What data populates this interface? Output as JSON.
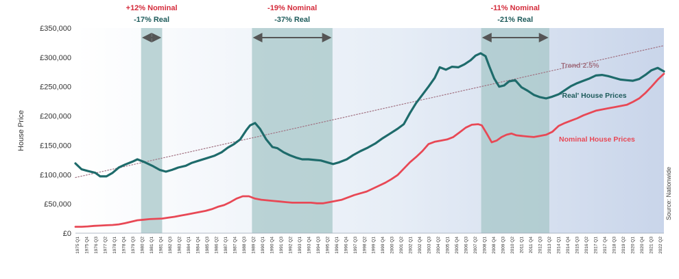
{
  "chart_data": {
    "type": "line",
    "ylabel": "House Price",
    "ylim": [
      0,
      350000
    ],
    "y_ticks": [
      "£0",
      "£50,000",
      "£100,000",
      "£150,000",
      "£200,000",
      "£250,000",
      "£300,000",
      "£350,000"
    ],
    "y_tick_values": [
      0,
      50000,
      100000,
      150000,
      200000,
      250000,
      300000,
      350000
    ],
    "x_range": [
      1975.0,
      2022.5
    ],
    "x_ticks": [
      "1975 Q1",
      "1975 Q4",
      "1976 Q3",
      "1977 Q2",
      "1978 Q1",
      "1978 Q4",
      "1979 Q3",
      "1980 Q2",
      "1981 Q1",
      "1981 Q4",
      "1982 Q3",
      "1983 Q2",
      "1984 Q1",
      "1984 Q4",
      "1985 Q3",
      "1986 Q2",
      "1987 Q1",
      "1987 Q4",
      "1988 Q3",
      "1989 Q2",
      "1990 Q1",
      "1990 Q4",
      "1991 Q3",
      "1992 Q2",
      "1993 Q1",
      "1993 Q4",
      "1994 Q3",
      "1995 Q2",
      "1996 Q1",
      "1996 Q4",
      "1997 Q3",
      "1998 Q2",
      "1999 Q1",
      "1999 Q4",
      "2000 Q3",
      "2001 Q2",
      "2002 Q1",
      "2002 Q4",
      "2003 Q3",
      "2004 Q2",
      "2005 Q1",
      "2005 Q4",
      "2006 Q3",
      "2007 Q2",
      "2008 Q1",
      "2008 Q4",
      "2009 Q3",
      "2010 Q2",
      "2011 Q1",
      "2011 Q4",
      "2012 Q3",
      "2013 Q2",
      "2014 Q1",
      "2014 Q4",
      "2015 Q3",
      "2016 Q2",
      "2017 Q1",
      "2017 Q4",
      "2018 Q3",
      "2019 Q2",
      "2020 Q1",
      "2020 Q4",
      "2021 Q3",
      "2022 Q2"
    ],
    "grid": false,
    "background": "gradient white to light blue",
    "series": [
      {
        "name": "'Real' House Prices",
        "color": "#1e6b6b",
        "x": [
          1975.0,
          1975.5,
          1976.0,
          1976.6,
          1977.0,
          1977.5,
          1978.0,
          1978.5,
          1979.0,
          1979.6,
          1980.0,
          1980.6,
          1981.2,
          1981.8,
          1982.3,
          1982.8,
          1983.3,
          1983.9,
          1984.4,
          1985.0,
          1985.6,
          1986.2,
          1986.8,
          1987.3,
          1987.8,
          1988.3,
          1988.8,
          1989.1,
          1989.5,
          1989.9,
          1990.4,
          1990.9,
          1991.3,
          1991.8,
          1992.3,
          1992.8,
          1993.3,
          1993.8,
          1994.3,
          1994.8,
          1995.3,
          1995.8,
          1996.3,
          1996.9,
          1997.4,
          1998.0,
          1998.6,
          1999.2,
          1999.8,
          2000.4,
          2001.0,
          2001.5,
          2002.0,
          2002.5,
          2003.0,
          2003.5,
          2004.0,
          2004.4,
          2004.9,
          2005.4,
          2005.9,
          2006.4,
          2006.9,
          2007.3,
          2007.7,
          2008.1,
          2008.4,
          2008.8,
          2009.2,
          2009.6,
          2010.0,
          2010.5,
          2011.0,
          2011.5,
          2012.0,
          2012.5,
          2013.0,
          2013.5,
          2014.0,
          2014.5,
          2015.0,
          2015.5,
          2016.0,
          2016.5,
          2017.0,
          2017.5,
          2018.0,
          2018.5,
          2019.0,
          2019.5,
          2020.0,
          2020.5,
          2021.0,
          2021.5,
          2022.0,
          2022.5
        ],
        "y": [
          119000,
          109000,
          106000,
          103000,
          97000,
          97000,
          103000,
          112000,
          117000,
          122000,
          126000,
          121000,
          115000,
          108000,
          105000,
          108000,
          112000,
          115000,
          120000,
          124000,
          128000,
          132000,
          138000,
          146000,
          152000,
          160000,
          176000,
          184000,
          188000,
          178000,
          160000,
          147000,
          145000,
          138000,
          133000,
          129000,
          126000,
          126000,
          125000,
          124000,
          121000,
          118000,
          121000,
          126000,
          133000,
          140000,
          146000,
          153000,
          162000,
          170000,
          178000,
          186000,
          205000,
          222000,
          236000,
          250000,
          265000,
          283000,
          279000,
          284000,
          283000,
          288000,
          295000,
          303000,
          307000,
          302000,
          285000,
          264000,
          250000,
          252000,
          259000,
          261000,
          249000,
          243000,
          236000,
          232000,
          230000,
          233000,
          237000,
          244000,
          251000,
          256000,
          260000,
          264000,
          269000,
          270000,
          268000,
          265000,
          262000,
          261000,
          260000,
          263000,
          270000,
          278000,
          282000,
          276000
        ]
      },
      {
        "name": "Nominal House Prices",
        "color": "#e84855",
        "x": [
          1975.0,
          1975.5,
          1976.0,
          1976.5,
          1977.0,
          1977.5,
          1978.0,
          1978.5,
          1979.0,
          1979.5,
          1980.0,
          1980.5,
          1981.0,
          1981.5,
          1982.0,
          1982.5,
          1983.0,
          1983.5,
          1984.0,
          1984.5,
          1985.0,
          1985.5,
          1986.0,
          1986.5,
          1987.0,
          1987.5,
          1988.0,
          1988.5,
          1989.0,
          1989.5,
          1990.0,
          1990.5,
          1991.0,
          1991.5,
          1992.0,
          1992.5,
          1993.0,
          1993.5,
          1994.0,
          1994.5,
          1995.0,
          1995.5,
          1996.0,
          1996.5,
          1997.0,
          1997.5,
          1998.0,
          1998.5,
          1999.0,
          1999.5,
          2000.0,
          2000.5,
          2001.0,
          2001.5,
          2002.0,
          2002.5,
          2003.0,
          2003.5,
          2004.0,
          2004.5,
          2005.0,
          2005.5,
          2006.0,
          2006.5,
          2007.0,
          2007.5,
          2007.8,
          2008.2,
          2008.6,
          2009.0,
          2009.4,
          2009.8,
          2010.2,
          2010.6,
          2011.0,
          2011.5,
          2012.0,
          2012.5,
          2013.0,
          2013.5,
          2014.0,
          2014.5,
          2015.0,
          2015.5,
          2016.0,
          2016.5,
          2017.0,
          2017.5,
          2018.0,
          2018.5,
          2019.0,
          2019.5,
          2020.0,
          2020.5,
          2021.0,
          2021.5,
          2022.0,
          2022.5
        ],
        "y": [
          11000,
          11000,
          11500,
          12500,
          13000,
          13500,
          14000,
          15000,
          17000,
          19500,
          22000,
          23000,
          24000,
          24500,
          25000,
          26500,
          28000,
          30000,
          32000,
          34000,
          36000,
          38000,
          41000,
          45000,
          48000,
          53000,
          59000,
          63000,
          63000,
          59000,
          57000,
          56000,
          55000,
          54000,
          53000,
          52000,
          52000,
          52000,
          52000,
          51000,
          51000,
          53000,
          55000,
          57000,
          61000,
          65000,
          68000,
          71000,
          76000,
          81000,
          86000,
          92000,
          99000,
          110000,
          121000,
          130000,
          140000,
          152000,
          156000,
          158000,
          160000,
          164000,
          172000,
          180000,
          185000,
          186000,
          184000,
          170000,
          155000,
          158000,
          164000,
          168000,
          170000,
          167000,
          166000,
          165000,
          164000,
          166000,
          168000,
          173000,
          183000,
          188000,
          192000,
          196000,
          201000,
          205000,
          209000,
          211000,
          213000,
          215000,
          217000,
          219000,
          224000,
          230000,
          239000,
          250000,
          262000,
          272000
        ]
      },
      {
        "name": "Trend 2.5%",
        "color": "#a07080",
        "style": "dotted",
        "x": [
          1975.0,
          2022.5
        ],
        "y": [
          95000,
          320000
        ]
      }
    ],
    "shaded_periods": [
      {
        "start": 1980.3,
        "end": 1982.0,
        "nominal": "+12% Nominal",
        "real": "-17% Real"
      },
      {
        "start": 1989.25,
        "end": 1995.75,
        "nominal": "-19% Nominal",
        "real": "-37% Real"
      },
      {
        "start": 2007.75,
        "end": 2013.25,
        "nominal": "-11% Nominal",
        "real": "-21% Real"
      }
    ],
    "annotations": {
      "trend_label": "Trend 2.5%",
      "real_label": "'Real' House Prices",
      "nominal_label": "Nominal House Prices",
      "source": "Source: Nationwide"
    },
    "colors": {
      "real": "#1e6b6b",
      "nominal": "#e84855",
      "trend": "#a07080",
      "shade": "#a7c7c8",
      "arrow": "#555555",
      "nominal_annotation": "#d42a3a",
      "real_annotation": "#1e5b5b"
    }
  }
}
